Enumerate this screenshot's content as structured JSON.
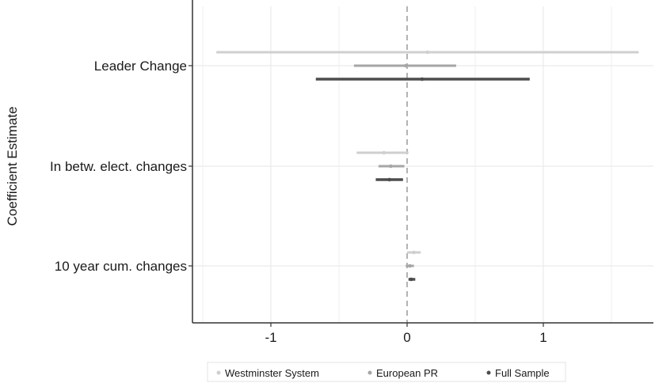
{
  "chart_data": {
    "type": "scatter",
    "subtype": "coefficient-plot",
    "ylabel": "Coefficient Estimate",
    "xlabel": "",
    "xlim": [
      -1.5,
      1.8
    ],
    "xticks": [
      -1,
      0,
      1
    ],
    "xtick_labels": [
      "-1",
      "0",
      "1"
    ],
    "categories": [
      "Leader Change",
      "In betw. elect. changes",
      "10 year cum. changes"
    ],
    "reference_line": {
      "x": 0,
      "style": "dashed"
    },
    "grid": true,
    "legend_position": "bottom",
    "series": [
      {
        "name": "Westminster System",
        "color": "#cfcfcf",
        "estimates": [
          0.15,
          -0.17,
          0.05
        ],
        "ci_low": [
          -1.4,
          -0.37,
          0.0
        ],
        "ci_high": [
          1.7,
          0.01,
          0.1
        ]
      },
      {
        "name": "European PR",
        "color": "#a6a6a6",
        "estimates": [
          -0.01,
          -0.12,
          0.02
        ],
        "ci_low": [
          -0.39,
          -0.21,
          -0.01
        ],
        "ci_high": [
          0.36,
          -0.02,
          0.05
        ]
      },
      {
        "name": "Full Sample",
        "color": "#4d4d4d",
        "estimates": [
          0.11,
          -0.13,
          0.03
        ],
        "ci_low": [
          -0.67,
          -0.23,
          0.01
        ],
        "ci_high": [
          0.9,
          -0.03,
          0.06
        ]
      }
    ]
  }
}
